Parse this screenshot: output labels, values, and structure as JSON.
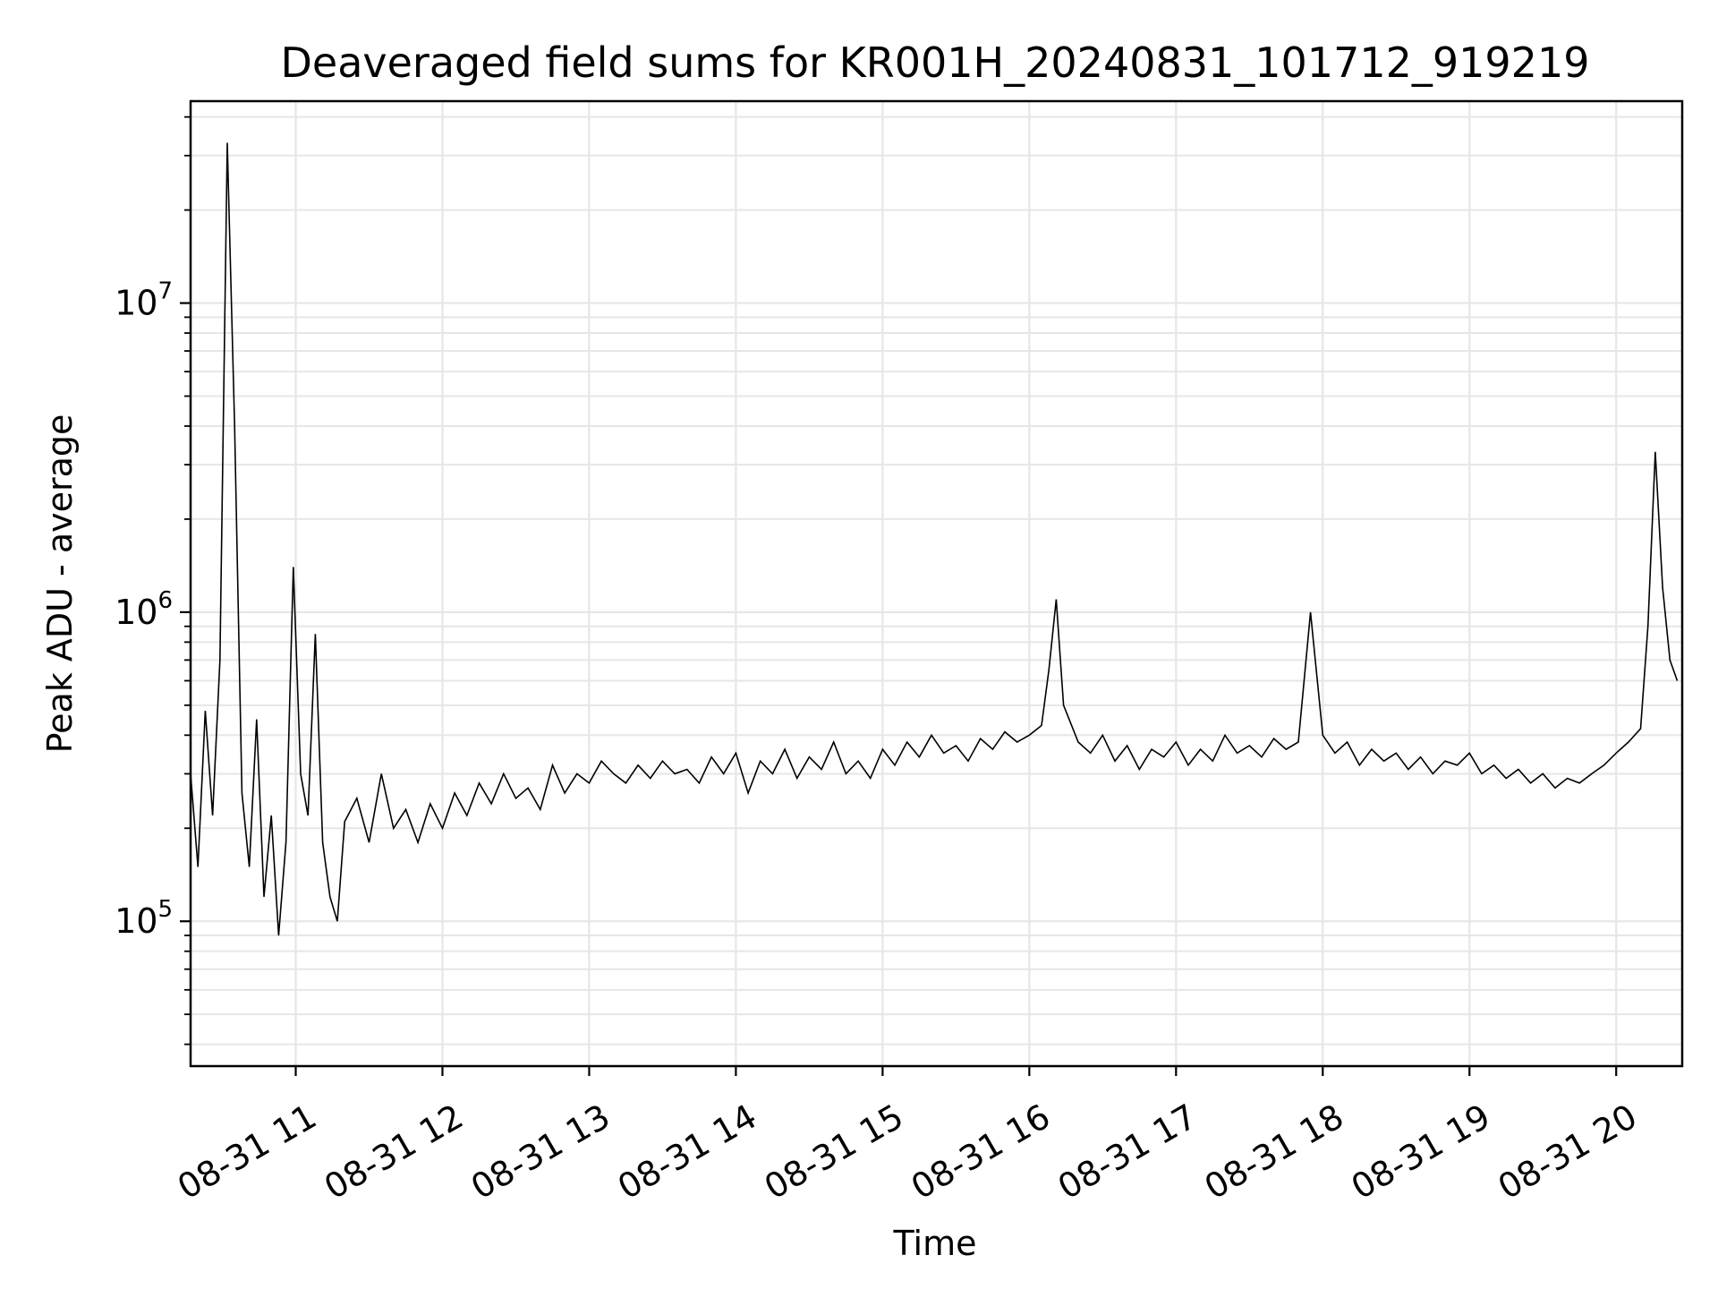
{
  "chart_data": {
    "type": "line",
    "title": "Deaveraged field sums for KR001H_20240831_101712_919219",
    "xlabel": "Time",
    "ylabel": "Peak ADU - average",
    "yscale": "log",
    "grid": true,
    "grid_minor": true,
    "line_color": "#000000",
    "grid_color": "#e6e6e6",
    "xlim": [
      "2024-08-31 10:17",
      "2024-08-31 20:27"
    ],
    "ylim": [
      34000,
      45000000
    ],
    "x_ticks": [
      {
        "value": "2024-08-31 11:00",
        "label": "08-31 11"
      },
      {
        "value": "2024-08-31 12:00",
        "label": "08-31 12"
      },
      {
        "value": "2024-08-31 13:00",
        "label": "08-31 13"
      },
      {
        "value": "2024-08-31 14:00",
        "label": "08-31 14"
      },
      {
        "value": "2024-08-31 15:00",
        "label": "08-31 15"
      },
      {
        "value": "2024-08-31 16:00",
        "label": "08-31 16"
      },
      {
        "value": "2024-08-31 17:00",
        "label": "08-31 17"
      },
      {
        "value": "2024-08-31 18:00",
        "label": "08-31 18"
      },
      {
        "value": "2024-08-31 19:00",
        "label": "08-31 19"
      },
      {
        "value": "2024-08-31 20:00",
        "label": "08-31 20"
      }
    ],
    "y_ticks": [
      {
        "value": 100000,
        "base": "10",
        "exp": "5"
      },
      {
        "value": 1000000,
        "base": "10",
        "exp": "6"
      },
      {
        "value": 10000000,
        "base": "10",
        "exp": "7"
      }
    ],
    "series": [
      {
        "x": [
          "2024-08-31 10:17",
          "2024-08-31 10:20",
          "2024-08-31 10:23",
          "2024-08-31 10:26",
          "2024-08-31 10:29",
          "2024-08-31 10:32",
          "2024-08-31 10:35",
          "2024-08-31 10:38",
          "2024-08-31 10:41",
          "2024-08-31 10:44",
          "2024-08-31 10:47",
          "2024-08-31 10:50",
          "2024-08-31 10:53",
          "2024-08-31 10:56",
          "2024-08-31 10:59",
          "2024-08-31 11:02",
          "2024-08-31 11:05",
          "2024-08-31 11:08",
          "2024-08-31 11:11",
          "2024-08-31 11:14",
          "2024-08-31 11:17",
          "2024-08-31 11:20",
          "2024-08-31 11:25",
          "2024-08-31 11:30",
          "2024-08-31 11:35",
          "2024-08-31 11:40",
          "2024-08-31 11:45",
          "2024-08-31 11:50",
          "2024-08-31 11:55",
          "2024-08-31 12:00",
          "2024-08-31 12:05",
          "2024-08-31 12:10",
          "2024-08-31 12:15",
          "2024-08-31 12:20",
          "2024-08-31 12:25",
          "2024-08-31 12:30",
          "2024-08-31 12:35",
          "2024-08-31 12:40",
          "2024-08-31 12:45",
          "2024-08-31 12:50",
          "2024-08-31 12:55",
          "2024-08-31 13:00",
          "2024-08-31 13:05",
          "2024-08-31 13:10",
          "2024-08-31 13:15",
          "2024-08-31 13:20",
          "2024-08-31 13:25",
          "2024-08-31 13:30",
          "2024-08-31 13:35",
          "2024-08-31 13:40",
          "2024-08-31 13:45",
          "2024-08-31 13:50",
          "2024-08-31 13:55",
          "2024-08-31 14:00",
          "2024-08-31 14:05",
          "2024-08-31 14:10",
          "2024-08-31 14:15",
          "2024-08-31 14:20",
          "2024-08-31 14:25",
          "2024-08-31 14:30",
          "2024-08-31 14:35",
          "2024-08-31 14:40",
          "2024-08-31 14:45",
          "2024-08-31 14:50",
          "2024-08-31 14:55",
          "2024-08-31 15:00",
          "2024-08-31 15:05",
          "2024-08-31 15:10",
          "2024-08-31 15:15",
          "2024-08-31 15:20",
          "2024-08-31 15:25",
          "2024-08-31 15:30",
          "2024-08-31 15:35",
          "2024-08-31 15:40",
          "2024-08-31 15:45",
          "2024-08-31 15:50",
          "2024-08-31 15:55",
          "2024-08-31 16:00",
          "2024-08-31 16:05",
          "2024-08-31 16:08",
          "2024-08-31 16:11",
          "2024-08-31 16:14",
          "2024-08-31 16:20",
          "2024-08-31 16:25",
          "2024-08-31 16:30",
          "2024-08-31 16:35",
          "2024-08-31 16:40",
          "2024-08-31 16:45",
          "2024-08-31 16:50",
          "2024-08-31 16:55",
          "2024-08-31 17:00",
          "2024-08-31 17:05",
          "2024-08-31 17:10",
          "2024-08-31 17:15",
          "2024-08-31 17:20",
          "2024-08-31 17:25",
          "2024-08-31 17:30",
          "2024-08-31 17:35",
          "2024-08-31 17:40",
          "2024-08-31 17:45",
          "2024-08-31 17:50",
          "2024-08-31 17:55",
          "2024-08-31 18:00",
          "2024-08-31 18:05",
          "2024-08-31 18:10",
          "2024-08-31 18:15",
          "2024-08-31 18:20",
          "2024-08-31 18:25",
          "2024-08-31 18:30",
          "2024-08-31 18:35",
          "2024-08-31 18:40",
          "2024-08-31 18:45",
          "2024-08-31 18:50",
          "2024-08-31 18:55",
          "2024-08-31 19:00",
          "2024-08-31 19:05",
          "2024-08-31 19:10",
          "2024-08-31 19:15",
          "2024-08-31 19:20",
          "2024-08-31 19:25",
          "2024-08-31 19:30",
          "2024-08-31 19:35",
          "2024-08-31 19:40",
          "2024-08-31 19:45",
          "2024-08-31 19:50",
          "2024-08-31 19:55",
          "2024-08-31 20:00",
          "2024-08-31 20:05",
          "2024-08-31 20:10",
          "2024-08-31 20:13",
          "2024-08-31 20:16",
          "2024-08-31 20:19",
          "2024-08-31 20:22",
          "2024-08-31 20:25"
        ],
        "y": [
          300000,
          150000,
          480000,
          220000,
          700000,
          33000000,
          4000000,
          260000,
          150000,
          450000,
          120000,
          220000,
          90000,
          180000,
          1400000,
          300000,
          220000,
          850000,
          180000,
          120000,
          100000,
          210000,
          250000,
          180000,
          300000,
          200000,
          230000,
          180000,
          240000,
          200000,
          260000,
          220000,
          280000,
          240000,
          300000,
          250000,
          270000,
          230000,
          320000,
          260000,
          300000,
          280000,
          330000,
          300000,
          280000,
          320000,
          290000,
          330000,
          300000,
          310000,
          280000,
          340000,
          300000,
          350000,
          260000,
          330000,
          300000,
          360000,
          290000,
          340000,
          310000,
          380000,
          300000,
          330000,
          290000,
          360000,
          320000,
          380000,
          340000,
          400000,
          350000,
          370000,
          330000,
          390000,
          360000,
          410000,
          380000,
          400000,
          430000,
          650000,
          1100000,
          500000,
          380000,
          350000,
          400000,
          330000,
          370000,
          310000,
          360000,
          340000,
          380000,
          320000,
          360000,
          330000,
          400000,
          350000,
          370000,
          340000,
          390000,
          360000,
          380000,
          1000000,
          400000,
          350000,
          380000,
          320000,
          360000,
          330000,
          350000,
          310000,
          340000,
          300000,
          330000,
          320000,
          350000,
          300000,
          320000,
          290000,
          310000,
          280000,
          300000,
          270000,
          290000,
          280000,
          300000,
          320000,
          350000,
          380000,
          420000,
          900000,
          3300000,
          1200000,
          700000,
          600000
        ]
      }
    ]
  }
}
